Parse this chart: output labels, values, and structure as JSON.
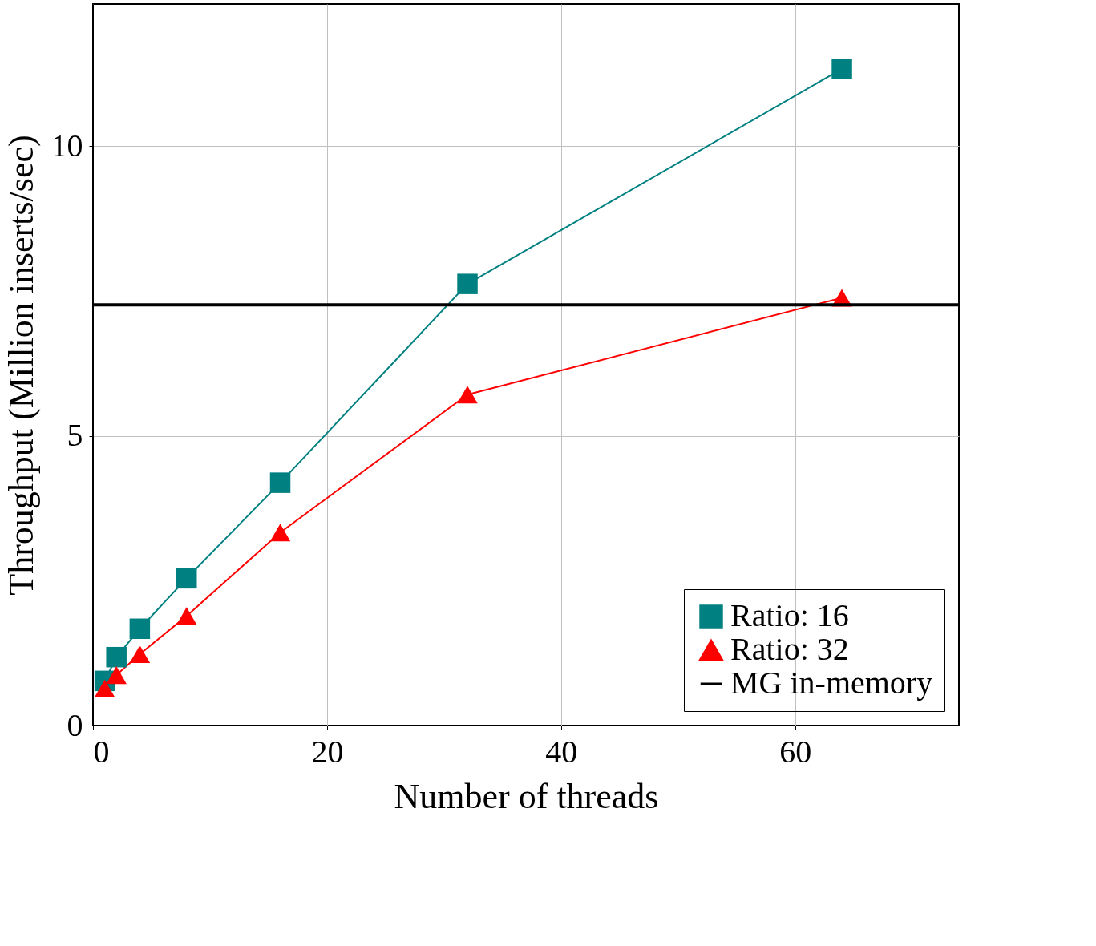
{
  "chart_data": {
    "type": "line",
    "xlabel": "Number of threads",
    "ylabel": "Throughput (Million inserts/sec)",
    "xlim": [
      0,
      74
    ],
    "ylim": [
      0,
      12.45
    ],
    "xticks": [
      0,
      20,
      40,
      60
    ],
    "yticks": [
      0,
      5,
      10
    ],
    "grid": true,
    "legend": "bottom right",
    "series": [
      {
        "name": "Ratio: 16",
        "color": "#008080",
        "marker": "square",
        "x": [
          1,
          2,
          4,
          8,
          16,
          32,
          64
        ],
        "values": [
          0.77,
          1.18,
          1.67,
          2.54,
          4.19,
          7.62,
          11.33
        ]
      },
      {
        "name": "Ratio: 32",
        "color": "#ff0000",
        "marker": "triangle",
        "x": [
          1,
          2,
          4,
          8,
          16,
          32,
          64
        ],
        "values": [
          0.64,
          0.87,
          1.23,
          1.89,
          3.33,
          5.71,
          7.38
        ]
      }
    ],
    "ref_lines": [
      {
        "axis": "y",
        "value": 7.26,
        "label": "MG in-memory",
        "color": "#000000"
      }
    ]
  }
}
